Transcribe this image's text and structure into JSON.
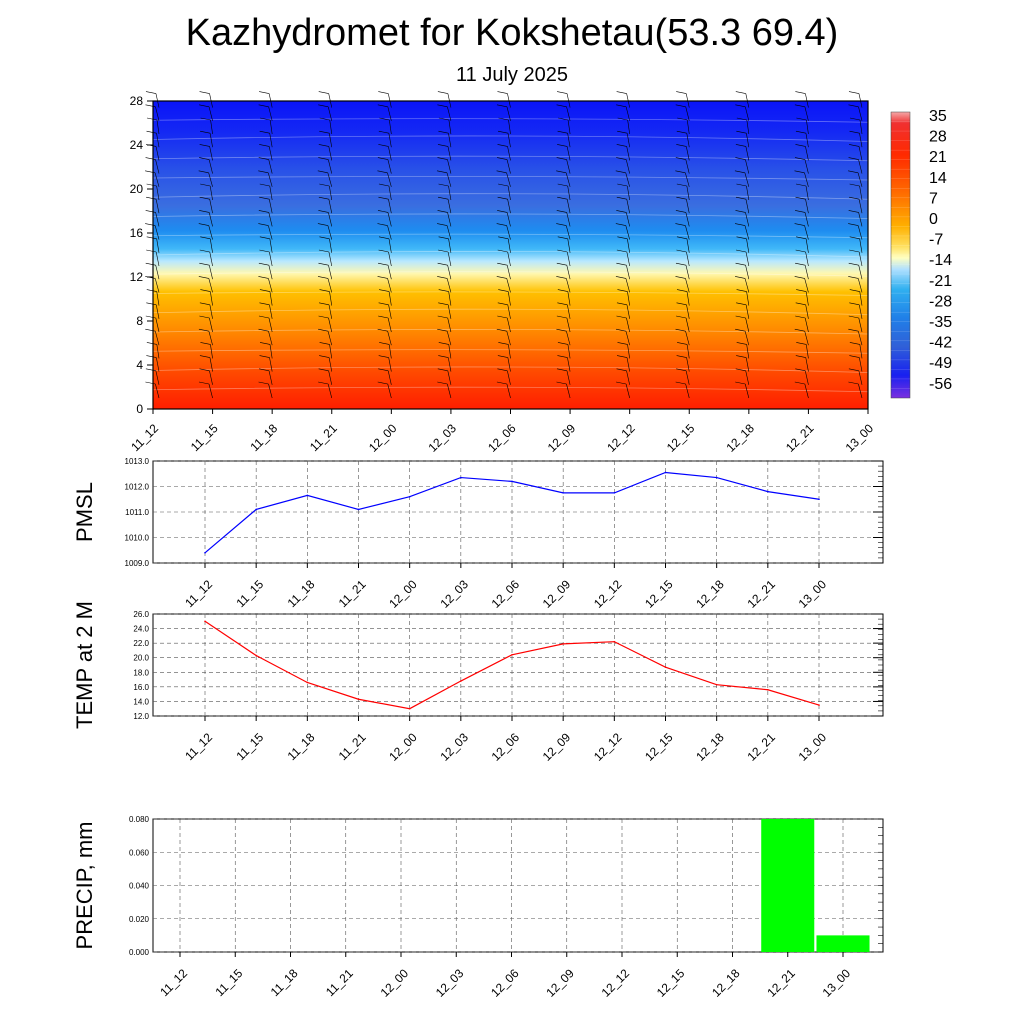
{
  "header": {
    "title": "Kazhydromet for Kokshetau(53.3 69.4)",
    "subtitle": "11 July 2025"
  },
  "colors": {
    "pmsl_line": "#0000ff",
    "temp_line": "#ff0000",
    "precip_bar": "#00ff00",
    "colorbar_top": "#f4a0a0",
    "colorbar_warm": "#ff2a00",
    "colorbar_mid": "#ffffb0",
    "colorbar_cold": "#1e90ff",
    "colorbar_bottom": "#7a30e0"
  },
  "chart_data": [
    {
      "type": "heatmap",
      "title": "",
      "x": [
        "11_12",
        "11_15",
        "11_18",
        "11_21",
        "12_00",
        "12_03",
        "12_06",
        "12_09",
        "12_12",
        "12_15",
        "12_18",
        "12_21",
        "13_00"
      ],
      "y_ticks": [
        0,
        4,
        8,
        12,
        16,
        20,
        24,
        28
      ],
      "ylim": [
        0,
        28
      ],
      "colorbar_labels": [
        "35",
        "28",
        "21",
        "14",
        "7",
        "0",
        "-7",
        "-14",
        "-21",
        "-28",
        "-35",
        "-42",
        "-49",
        "-56"
      ],
      "colorbar_range": [
        -63,
        42
      ],
      "overlay": "wind barbs",
      "grid": false
    },
    {
      "type": "line",
      "ylabel": "PMSL",
      "x": [
        "11_12",
        "11_15",
        "11_18",
        "11_21",
        "12_00",
        "12_03",
        "12_06",
        "12_09",
        "12_12",
        "12_15",
        "12_18",
        "12_21",
        "13_00"
      ],
      "values": [
        1009.4,
        1011.1,
        1011.65,
        1011.1,
        1011.6,
        1012.35,
        1012.2,
        1011.75,
        1011.75,
        1012.55,
        1012.35,
        1011.8,
        1011.5
      ],
      "y_ticks": [
        "1009.0",
        "1010.0",
        "1011.0",
        "1012.0",
        "1013.0"
      ],
      "ylim": [
        1009,
        1013
      ],
      "grid": true
    },
    {
      "type": "line",
      "ylabel": "TEMP at 2 M",
      "x": [
        "11_12",
        "11_15",
        "11_18",
        "11_21",
        "12_00",
        "12_03",
        "12_06",
        "12_09",
        "12_12",
        "12_15",
        "12_18",
        "12_21",
        "13_00"
      ],
      "values": [
        25.0,
        20.3,
        16.6,
        14.3,
        13.0,
        16.8,
        20.4,
        21.9,
        22.2,
        18.7,
        16.3,
        15.6,
        13.5
      ],
      "y_ticks": [
        "12.0",
        "14.0",
        "16.0",
        "18.0",
        "20.0",
        "22.0",
        "24.0",
        "26.0"
      ],
      "ylim": [
        12,
        26
      ],
      "grid": true
    },
    {
      "type": "bar",
      "ylabel": "PRECIP, mm",
      "categories": [
        "11_12",
        "11_15",
        "11_18",
        "11_21",
        "12_00",
        "12_03",
        "12_06",
        "12_09",
        "12_12",
        "12_15",
        "12_18",
        "12_21",
        "13_00"
      ],
      "values": [
        0,
        0,
        0,
        0,
        0,
        0,
        0,
        0,
        0,
        0,
        0,
        0.08,
        0.01
      ],
      "y_ticks": [
        "0.000",
        "0.020",
        "0.040",
        "0.060",
        "0.080"
      ],
      "ylim": [
        0,
        0.08
      ],
      "grid": true
    }
  ]
}
